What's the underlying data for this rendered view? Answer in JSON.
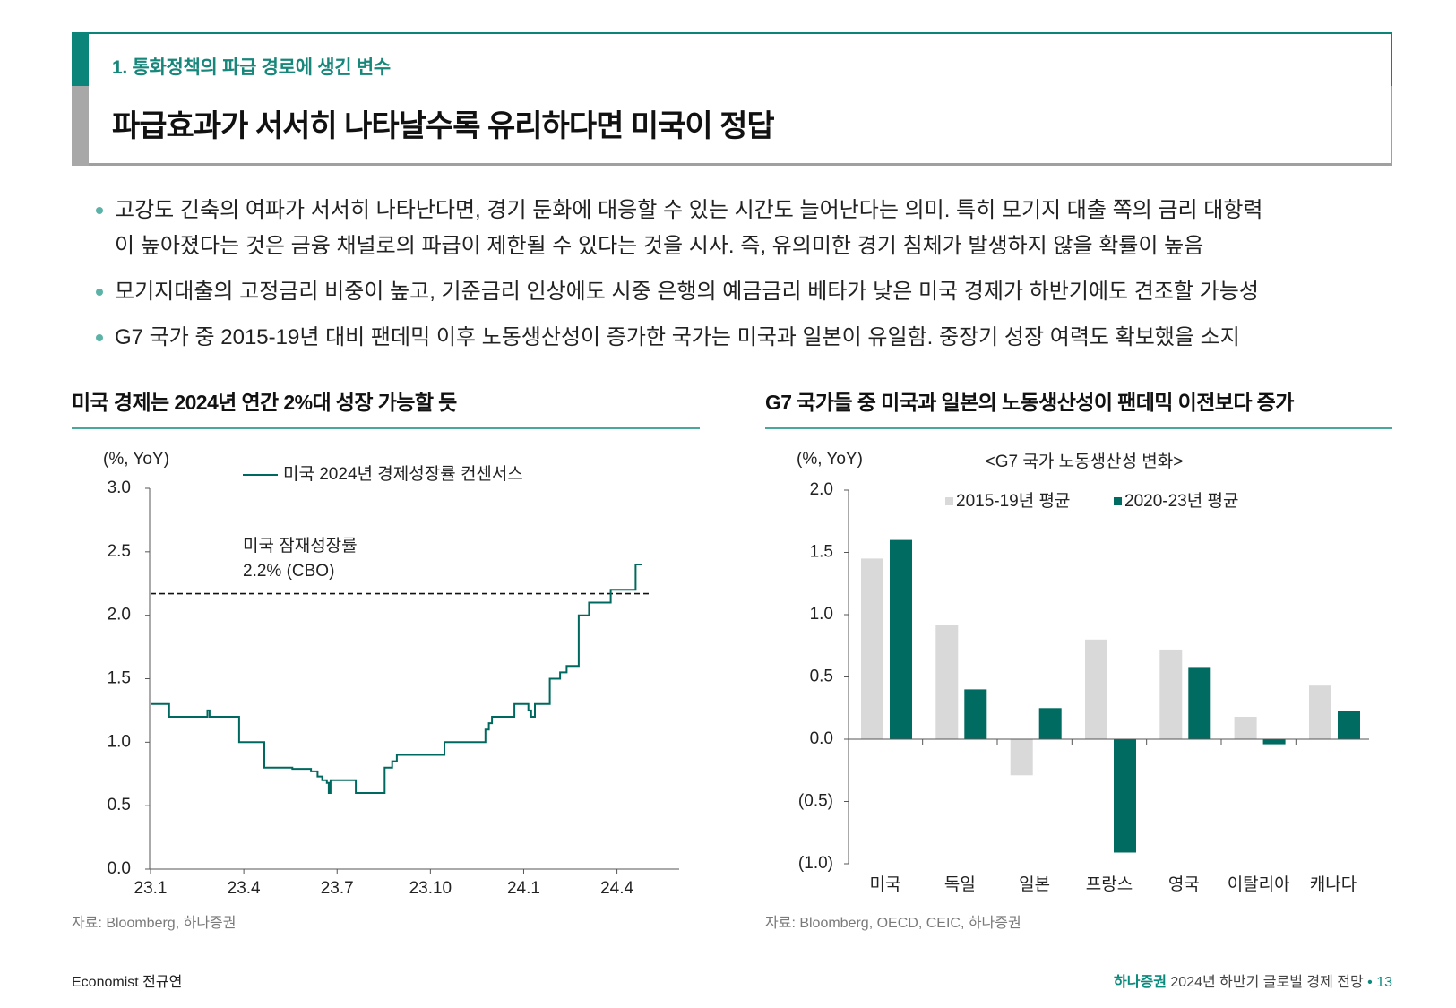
{
  "header": {
    "section_label": "1. 통화정책의 파급 경로에 생긴 변수",
    "title": "파급효과가 서서히 나타날수록 유리하다면 미국이 정답"
  },
  "bullets": [
    {
      "lines": [
        "고강도 긴축의 여파가 서서히 나타난다면, 경기 둔화에 대응할 수 있는 시간도 늘어난다는 의미. 특히 모기지 대출 쪽의 금리 대항력",
        "이 높아졌다는 것은 금융 채널로의 파급이 제한될 수 있다는 것을 시사. 즉, 유의미한 경기 침체가 발생하지 않을 확률이 높음"
      ]
    },
    {
      "lines": [
        "모기지대출의 고정금리 비중이 높고, 기준금리 인상에도 시중 은행의 예금금리 베타가 낮은 미국 경제가 하반기에도 견조할 가능성"
      ]
    },
    {
      "lines": [
        "G7 국가 중 2015-19년 대비 팬데믹 이후 노동생산성이 증가한 국가는 미국과 일본이 유일함. 중장기 성장 여력도 확보했을 소지"
      ]
    }
  ],
  "chart_data": [
    {
      "type": "line",
      "title": "미국 경제는 2024년 연간 2%대 성장 가능할 듯",
      "unit_label": "(%, YoY)",
      "xlim": [
        0,
        17
      ],
      "ylim": [
        0,
        3
      ],
      "x_ticks": [
        {
          "value": 0,
          "label": "23.1"
        },
        {
          "value": 3,
          "label": "23.4"
        },
        {
          "value": 6,
          "label": "23.7"
        },
        {
          "value": 9,
          "label": "23.10"
        },
        {
          "value": 12,
          "label": "24.1"
        },
        {
          "value": 15,
          "label": "24.4"
        }
      ],
      "y_ticks": [
        {
          "value": 3.0,
          "label": "3.0"
        },
        {
          "value": 2.5,
          "label": "2.5"
        },
        {
          "value": 2.0,
          "label": "2.0"
        },
        {
          "value": 1.5,
          "label": "1.5"
        },
        {
          "value": 1.0,
          "label": "1.0"
        },
        {
          "value": 0.5,
          "label": "0.5"
        },
        {
          "value": 0.0,
          "label": "0.0"
        }
      ],
      "series": [
        {
          "name": "미국 2024년 경제성장률 컨센서스",
          "color": "#00695f",
          "end_x": 15.81,
          "points": [
            [
              0,
              1.3
            ],
            [
              0.6,
              1.2
            ],
            [
              1.83,
              1.25
            ],
            [
              1.9,
              1.2
            ],
            [
              2.85,
              1.0
            ],
            [
              3.66,
              0.8
            ],
            [
              4.56,
              0.79
            ],
            [
              5.16,
              0.77
            ],
            [
              5.37,
              0.73
            ],
            [
              5.52,
              0.7
            ],
            [
              5.67,
              0.68
            ],
            [
              5.73,
              0.6
            ],
            [
              5.79,
              0.7
            ],
            [
              6.6,
              0.6
            ],
            [
              7.53,
              0.8
            ],
            [
              7.77,
              0.85
            ],
            [
              7.92,
              0.9
            ],
            [
              9.45,
              1.0
            ],
            [
              10.77,
              1.1
            ],
            [
              10.88,
              1.15
            ],
            [
              10.98,
              1.2
            ],
            [
              11.7,
              1.3
            ],
            [
              12.15,
              1.25
            ],
            [
              12.24,
              1.2
            ],
            [
              12.36,
              1.3
            ],
            [
              12.84,
              1.5
            ],
            [
              13.17,
              1.55
            ],
            [
              13.38,
              1.6
            ],
            [
              13.77,
              2.0
            ],
            [
              14.1,
              2.1
            ],
            [
              14.8,
              2.2
            ],
            [
              15.6,
              2.4
            ]
          ]
        }
      ],
      "reference_line": {
        "value": 2.17,
        "x_end": 16.02,
        "label_lines": [
          "미국 잠재성장률",
          "2.2% (CBO)"
        ]
      },
      "source": "자료: Bloomberg, 하나증권"
    },
    {
      "type": "bar",
      "title": "G7 국가들 중 미국과 일본의 노동생산성이 팬데믹 이전보다 증가",
      "subtitle": "<G7 국가 노동생산성 변화>",
      "unit_label": "(%, YoY)",
      "categories": [
        "미국",
        "독일",
        "일본",
        "프랑스",
        "영국",
        "이탈리아",
        "캐나다"
      ],
      "ylim": [
        -1,
        2
      ],
      "y_ticks": [
        {
          "value": 2.0,
          "label": "2.0"
        },
        {
          "value": 1.5,
          "label": "1.5"
        },
        {
          "value": 1.0,
          "label": "1.0"
        },
        {
          "value": 0.5,
          "label": "0.5"
        },
        {
          "value": 0.0,
          "label": "0.0"
        },
        {
          "value": -0.5,
          "label": "(0.5)"
        },
        {
          "value": -1.0,
          "label": "(1.0)"
        }
      ],
      "series": [
        {
          "name": "2015-19년 평균",
          "color": "#d9d9d9",
          "values": [
            1.45,
            0.92,
            -0.29,
            0.8,
            0.72,
            0.18,
            0.43
          ]
        },
        {
          "name": "2020-23년 평균",
          "color": "#006b61",
          "values": [
            1.6,
            0.4,
            0.25,
            -0.91,
            0.58,
            -0.04,
            0.23
          ]
        }
      ],
      "source": "자료: Bloomberg, OECD, CEIC, 하나증권"
    }
  ],
  "footer": {
    "author": "Economist 전규연",
    "brand": "하나증권",
    "publication": "2024년 하반기 글로벌 경제 전망",
    "separator": "•",
    "page_number": "13"
  },
  "colors": {
    "teal": "#0b857a",
    "accent": "#0a8a7c"
  }
}
